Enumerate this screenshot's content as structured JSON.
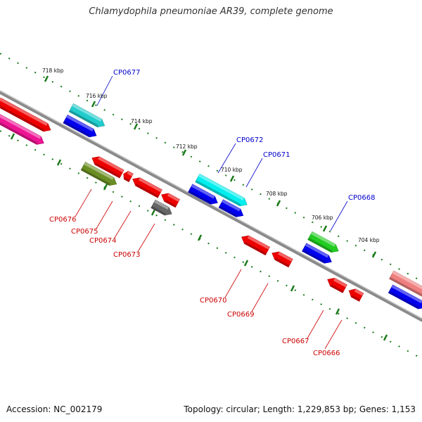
{
  "title": "Chlamydophila pneumoniae AR39, complete genome",
  "footer": {
    "accession": "Accession: NC_002179",
    "topology": "Topology: circular; Length: 1,229,853 bp; Genes: 1,153"
  },
  "ticks": [
    {
      "label": "718 kbp"
    },
    {
      "label": "716 kbp"
    },
    {
      "label": "714 kbp"
    },
    {
      "label": "712 kbp"
    },
    {
      "label": "710 kbp"
    },
    {
      "label": "708 kbp"
    },
    {
      "label": "706 kbp"
    },
    {
      "label": "704 kbp"
    }
  ],
  "forward_labels": [
    "CP0677",
    "CP0672",
    "CP0671",
    "CP0668"
  ],
  "reverse_labels": [
    "CP0676",
    "CP0675",
    "CP0674",
    "CP0673",
    "CP0670",
    "CP0669",
    "CP0667",
    "CP0666"
  ],
  "colors": {
    "forward_label": "#0000cc",
    "reverse_label": "#cc0000",
    "backbone": "#8a8a8a",
    "tick": "#1a7a1a",
    "red": "#ee0000",
    "blue": "#0000ee",
    "cyan": "#22cccc",
    "aqua": "#00eeee",
    "green": "#22cc22",
    "olive": "#6b8e23",
    "gray": "#666666",
    "magenta": "#ee1493",
    "salmon": "#f08080"
  }
}
